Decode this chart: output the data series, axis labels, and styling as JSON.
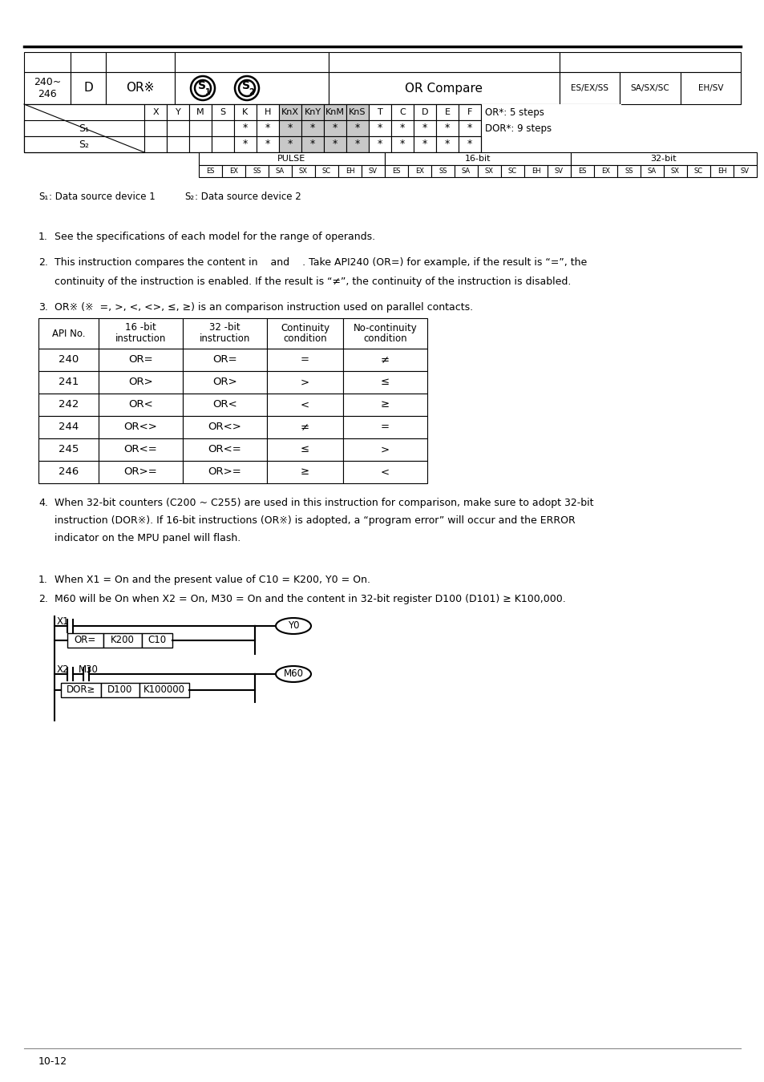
{
  "page_num": "10-12",
  "bg_color": "#ffffff",
  "header": {
    "api_range": "240~\n246",
    "type": "D",
    "instruction": "OR※",
    "description": "OR Compare",
    "plc_types": [
      "ES/EX/SS",
      "SA/SX/SC",
      "EH/SV"
    ]
  },
  "operand_cols": [
    "X",
    "Y",
    "M",
    "S",
    "K",
    "H",
    "KnX",
    "KnY",
    "KnM",
    "KnS",
    "T",
    "C",
    "D",
    "E",
    "F"
  ],
  "s1_stars_idx": [
    4,
    5,
    6,
    7,
    8,
    9,
    10,
    11,
    12,
    13,
    14
  ],
  "s2_stars_idx": [
    4,
    5,
    6,
    7,
    8,
    9,
    10,
    11,
    12,
    13,
    14
  ],
  "shaded_col_idx": [
    6,
    7,
    8,
    9
  ],
  "note1": "OR*: 5 steps",
  "note2": "DOR*: 9 steps",
  "pulse_cols": [
    "ES",
    "EX",
    "SS",
    "SA",
    "SX",
    "SC",
    "EH",
    "SV"
  ],
  "s1_desc": ": Data source device 1",
  "s2_desc": ": Data source device 2",
  "point1": "See the specifications of each model for the range of operands.",
  "point2a": "This instruction compares the content in    and    . Take API240 (OR=) for example, if the result is “=”, the",
  "point2b": "continuity of the instruction is enabled. If the result is “≠”, the continuity of the instruction is disabled.",
  "point3": "OR※ (※  =, >, <, <>, ≤, ≥) is an comparison instruction used on parallel contacts.",
  "cmp_headers": [
    "API No.",
    "16 -bit\ninstruction",
    "32 -bit\ninstruction",
    "Continuity\ncondition",
    "No-continuity\ncondition"
  ],
  "cmp_rows": [
    [
      "240",
      "OR=",
      "OR=",
      "=",
      "≠"
    ],
    [
      "241",
      "OR>",
      "OR>",
      ">",
      "≤"
    ],
    [
      "242",
      "OR<",
      "OR<",
      "<",
      "≥"
    ],
    [
      "244",
      "OR<>",
      "OR<>",
      "≠",
      "="
    ],
    [
      "245",
      "OR<=",
      "OR<=",
      "≤",
      ">"
    ],
    [
      "246",
      "OR>=",
      "OR>=",
      "≥",
      "<"
    ]
  ],
  "cmp_col_widths": [
    75,
    105,
    105,
    95,
    105
  ],
  "point4a": "When 32-bit counters (C200 ~ C255) are used in this instruction for comparison, make sure to adopt 32-bit",
  "point4b": "instruction (DOR※). If 16-bit instructions (OR※) is adopted, a “program error” will occur and the ERROR",
  "point4c": "indicator on the MPU panel will flash.",
  "ex1": "When X1 = On and the present value of C10 = K200, Y0 = On.",
  "ex2": "M60 will be On when X2 = On, M30 = On and the content in 32-bit register D100 (D101) ≥ K100,000."
}
